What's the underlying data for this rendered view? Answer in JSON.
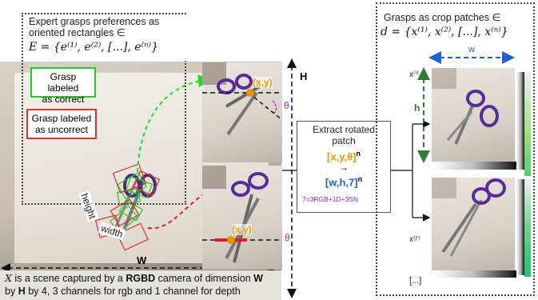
{
  "top_left_caption": {
    "line1": "Expert grasps preferences as",
    "line2": "oriented rectangles ∈",
    "formula": "E = {e⁽¹⁾, e⁽²⁾, [...], e⁽ⁿ⁾}"
  },
  "legend": {
    "correct": "Grasp labeled as correct",
    "correct_l1": "Grasp labeled",
    "correct_l2": "as correct",
    "uncorrect_l1": "Grasp labeled",
    "uncorrect_l2": "as uncorrect",
    "correct_color": "#22cc22",
    "uncorrect_color": "#e03030"
  },
  "scene_labels": {
    "height": "height",
    "width": "width",
    "W": "W",
    "H": "H"
  },
  "bottom_caption": {
    "line1_a": "X",
    "line1_b": " is a scene captured by a ",
    "line1_c": "RGBD",
    "line1_d": " camera of dimension ",
    "line1_e": "W",
    "line2_a": "by ",
    "line2_b": "H",
    "line2_c": " by 4, 3 channels for rgb and 1 channel for depth"
  },
  "crop_labels": {
    "xy_top": "(x,y)",
    "theta_top": "θ",
    "xy_bottom": "(x,y)",
    "theta_bottom": "θ"
  },
  "extract": {
    "title_l1": "Extract rotated",
    "title_l2": "patch",
    "tuple_in": "[x,y,θ]",
    "power_in": "n",
    "arrow": "→",
    "tuple_out": "[w,h,7]",
    "power_out": "n",
    "footnote": "7=3RGB+1D+3SN",
    "colors": {
      "x": "#e69500",
      "y": "#e69500",
      "theta": "#d020d0",
      "w": "#2060d0",
      "h": "#2e7d32",
      "seven": "#7a2ad0"
    }
  },
  "right_panel": {
    "title_l1": "Grasps as crop patches ∈",
    "formula": "d = {x⁽¹⁾, x⁽²⁾, [...], x⁽ⁿ⁾}",
    "w_label": "w",
    "h_label": "h",
    "xi_label": "x⁽ⁱ⁾",
    "xj_label": "x⁽ʲ'⁾",
    "more": "[...]"
  }
}
